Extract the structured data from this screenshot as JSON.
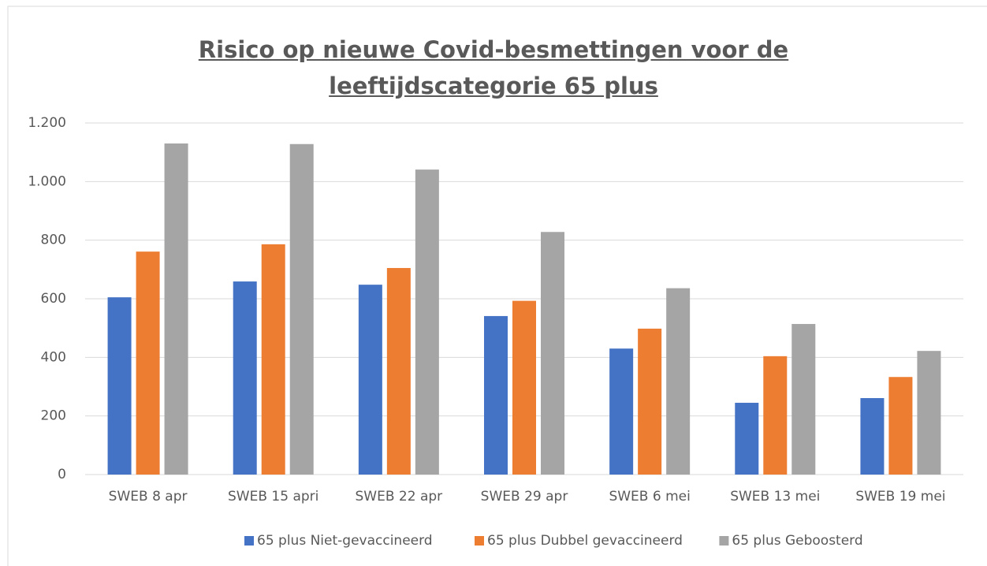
{
  "chart_data": {
    "type": "bar",
    "title": "Risico op nieuwe Covid-besmettingen voor de leeftijdscategorie 65 plus",
    "categories": [
      "SWEB 8 apr",
      "SWEB 15 apri",
      "SWEB 22 apr",
      "SWEB 29 apr",
      "SWEB 6 mei",
      "SWEB 13 mei",
      "SWEB 19 mei"
    ],
    "series": [
      {
        "name": "65 plus Niet-gevaccineerd",
        "color": "#4472c4",
        "values": [
          605,
          659,
          648,
          541,
          430,
          245,
          261
        ]
      },
      {
        "name": "65 plus Dubbel gevaccineerd",
        "color": "#ed7d31",
        "values": [
          761,
          786,
          705,
          593,
          498,
          404,
          333
        ]
      },
      {
        "name": "65 plus Geboosterd",
        "color": "#a5a5a5",
        "values": [
          1130,
          1128,
          1041,
          828,
          636,
          514,
          422
        ]
      }
    ],
    "ylim": [
      0,
      1200
    ],
    "yticks": [
      0,
      200,
      400,
      600,
      800,
      {
        "value": 1000,
        "label": "1.000"
      },
      {
        "value": 1200,
        "label": "1.200"
      }
    ],
    "grid": true,
    "legend": "bottom"
  }
}
